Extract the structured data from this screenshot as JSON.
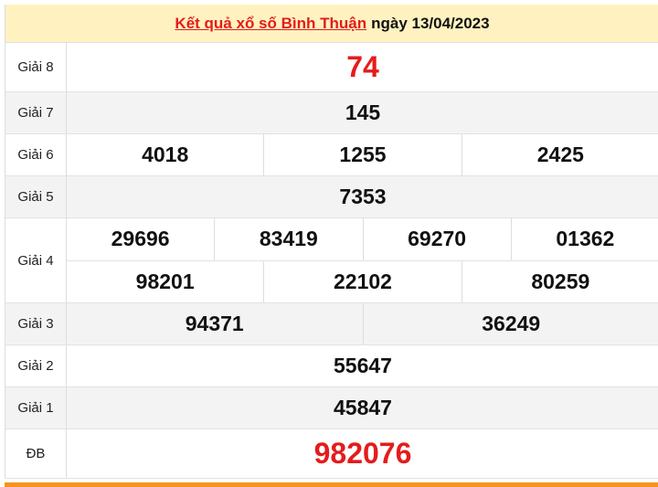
{
  "header": {
    "title_link": "Kết quả xổ số Bình Thuận",
    "date_text": "ngày 13/04/2023"
  },
  "colors": {
    "accent_red": "#e41c1c",
    "header_bg": "#fff2c0",
    "bottom_bar": "#f7931e"
  },
  "prizes": [
    {
      "label": "Giải 8",
      "rows": [
        [
          "74"
        ]
      ]
    },
    {
      "label": "Giải 7",
      "rows": [
        [
          "145"
        ]
      ]
    },
    {
      "label": "Giải 6",
      "rows": [
        [
          "4018",
          "1255",
          "2425"
        ]
      ]
    },
    {
      "label": "Giải 5",
      "rows": [
        [
          "7353"
        ]
      ]
    },
    {
      "label": "Giải 4",
      "rows": [
        [
          "29696",
          "83419",
          "69270",
          "01362"
        ],
        [
          "98201",
          "22102",
          "80259"
        ]
      ]
    },
    {
      "label": "Giải 3",
      "rows": [
        [
          "94371",
          "36249"
        ]
      ]
    },
    {
      "label": "Giải 2",
      "rows": [
        [
          "55647"
        ]
      ]
    },
    {
      "label": "Giải 1",
      "rows": [
        [
          "45847"
        ]
      ]
    },
    {
      "label": "ĐB",
      "rows": [
        [
          "982076"
        ]
      ]
    }
  ]
}
